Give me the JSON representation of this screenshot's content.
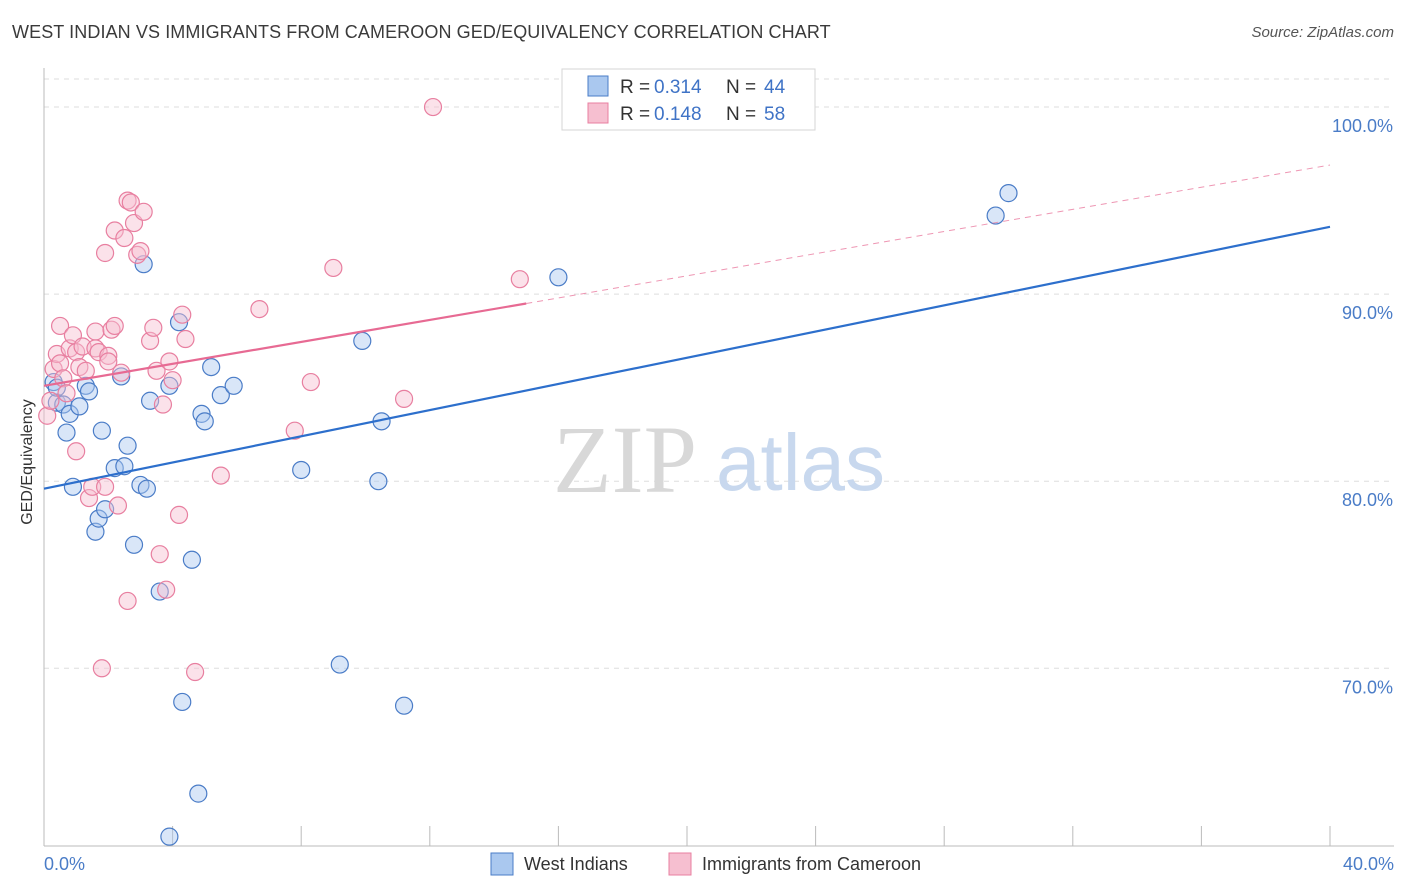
{
  "title": "WEST INDIAN VS IMMIGRANTS FROM CAMEROON GED/EQUIVALENCY CORRELATION CHART",
  "source": "Source: ZipAtlas.com",
  "watermark": {
    "part1": "ZIP",
    "part2": "atlas"
  },
  "colors": {
    "blue": "#4a7cc7",
    "blue_fill": "#aac8ef",
    "pink": "#e87fa0",
    "pink_fill": "#f6bfd0",
    "blue_line": "#2d6fcc",
    "pink_line": "#e76a93"
  },
  "chart_data": {
    "type": "scatter",
    "xlabel": "",
    "ylabel": "GED/Equivalency",
    "xlim": [
      0,
      40
    ],
    "ylim": [
      60.5,
      101.5
    ],
    "x_tick_labels": [
      "0.0%",
      "40.0%"
    ],
    "y_ticks": [
      70,
      80,
      90,
      100
    ],
    "y_tick_labels": [
      "70.0%",
      "80.0%",
      "90.0%",
      "100.0%"
    ],
    "legend": {
      "r_label": "R = ",
      "n_label": "N = ",
      "entries": [
        {
          "r": "0.314",
          "n": "44"
        },
        {
          "r": "0.148",
          "n": "58"
        }
      ]
    },
    "series": [
      {
        "name": "West Indians",
        "color": "blue",
        "trend": {
          "x0": 0,
          "y0": 79.6,
          "x1": 40,
          "y1": 93.6,
          "dashed_to": null
        },
        "points": [
          [
            0.3,
            85.3
          ],
          [
            0.4,
            84.2
          ],
          [
            0.4,
            85.0
          ],
          [
            0.6,
            84.1
          ],
          [
            0.7,
            82.6
          ],
          [
            0.8,
            83.6
          ],
          [
            0.9,
            79.7
          ],
          [
            1.1,
            84.0
          ],
          [
            1.3,
            85.1
          ],
          [
            1.4,
            84.8
          ],
          [
            1.6,
            77.3
          ],
          [
            1.7,
            78.0
          ],
          [
            1.8,
            82.7
          ],
          [
            1.9,
            78.5
          ],
          [
            2.2,
            80.7
          ],
          [
            2.4,
            85.6
          ],
          [
            2.5,
            80.8
          ],
          [
            2.6,
            81.9
          ],
          [
            2.8,
            76.6
          ],
          [
            3.0,
            79.8
          ],
          [
            3.1,
            91.6
          ],
          [
            3.2,
            79.6
          ],
          [
            3.3,
            84.3
          ],
          [
            3.6,
            74.1
          ],
          [
            3.9,
            85.1
          ],
          [
            4.2,
            88.5
          ],
          [
            4.3,
            68.2
          ],
          [
            4.6,
            75.8
          ],
          [
            4.8,
            63.3
          ],
          [
            4.9,
            83.6
          ],
          [
            5.0,
            83.2
          ],
          [
            5.2,
            86.1
          ],
          [
            5.5,
            84.6
          ],
          [
            5.9,
            85.1
          ],
          [
            8.0,
            80.6
          ],
          [
            9.2,
            70.2
          ],
          [
            9.9,
            87.5
          ],
          [
            10.4,
            80.0
          ],
          [
            10.5,
            83.2
          ],
          [
            11.2,
            68.0
          ],
          [
            16.0,
            90.9
          ],
          [
            29.6,
            94.2
          ],
          [
            30.0,
            95.4
          ],
          [
            3.9,
            61.0
          ]
        ]
      },
      {
        "name": "Immigrants from Cameroon",
        "color": "pink",
        "trend": {
          "x0": 0,
          "y0": 85.1,
          "x1": 15.0,
          "y1": 89.5,
          "dashed_to": {
            "x": 40,
            "y": 96.9
          }
        },
        "points": [
          [
            0.1,
            83.5
          ],
          [
            0.2,
            84.3
          ],
          [
            0.3,
            86.0
          ],
          [
            0.4,
            86.8
          ],
          [
            0.5,
            86.3
          ],
          [
            0.5,
            88.3
          ],
          [
            0.6,
            85.5
          ],
          [
            0.7,
            84.7
          ],
          [
            0.8,
            87.1
          ],
          [
            0.9,
            87.8
          ],
          [
            1.0,
            81.6
          ],
          [
            1.0,
            86.9
          ],
          [
            1.1,
            86.1
          ],
          [
            1.2,
            87.2
          ],
          [
            1.3,
            85.9
          ],
          [
            1.4,
            79.1
          ],
          [
            1.5,
            79.7
          ],
          [
            1.6,
            88.0
          ],
          [
            1.6,
            87.1
          ],
          [
            1.7,
            86.9
          ],
          [
            1.8,
            70.0
          ],
          [
            1.9,
            79.7
          ],
          [
            2.0,
            86.7
          ],
          [
            2.1,
            88.1
          ],
          [
            2.2,
            93.4
          ],
          [
            2.2,
            88.3
          ],
          [
            2.3,
            78.7
          ],
          [
            2.4,
            85.8
          ],
          [
            2.5,
            93.0
          ],
          [
            2.6,
            95.0
          ],
          [
            2.6,
            73.6
          ],
          [
            2.7,
            94.9
          ],
          [
            2.8,
            93.8
          ],
          [
            2.9,
            92.1
          ],
          [
            3.0,
            92.3
          ],
          [
            3.1,
            94.4
          ],
          [
            3.3,
            87.5
          ],
          [
            3.4,
            88.2
          ],
          [
            3.5,
            85.9
          ],
          [
            3.6,
            76.1
          ],
          [
            3.7,
            84.1
          ],
          [
            3.8,
            74.2
          ],
          [
            3.9,
            86.4
          ],
          [
            4.0,
            85.4
          ],
          [
            4.2,
            78.2
          ],
          [
            4.3,
            88.9
          ],
          [
            4.4,
            87.6
          ],
          [
            4.7,
            69.8
          ],
          [
            5.5,
            80.3
          ],
          [
            6.7,
            89.2
          ],
          [
            7.8,
            82.7
          ],
          [
            8.3,
            85.3
          ],
          [
            9.0,
            91.4
          ],
          [
            11.2,
            84.4
          ],
          [
            12.1,
            100.0
          ],
          [
            14.8,
            90.8
          ],
          [
            1.9,
            92.2
          ],
          [
            2.0,
            86.4
          ]
        ]
      }
    ]
  },
  "bottom_legend": [
    {
      "label": "West Indians",
      "color": "blue"
    },
    {
      "label": "Immigrants from Cameroon",
      "color": "pink"
    }
  ]
}
